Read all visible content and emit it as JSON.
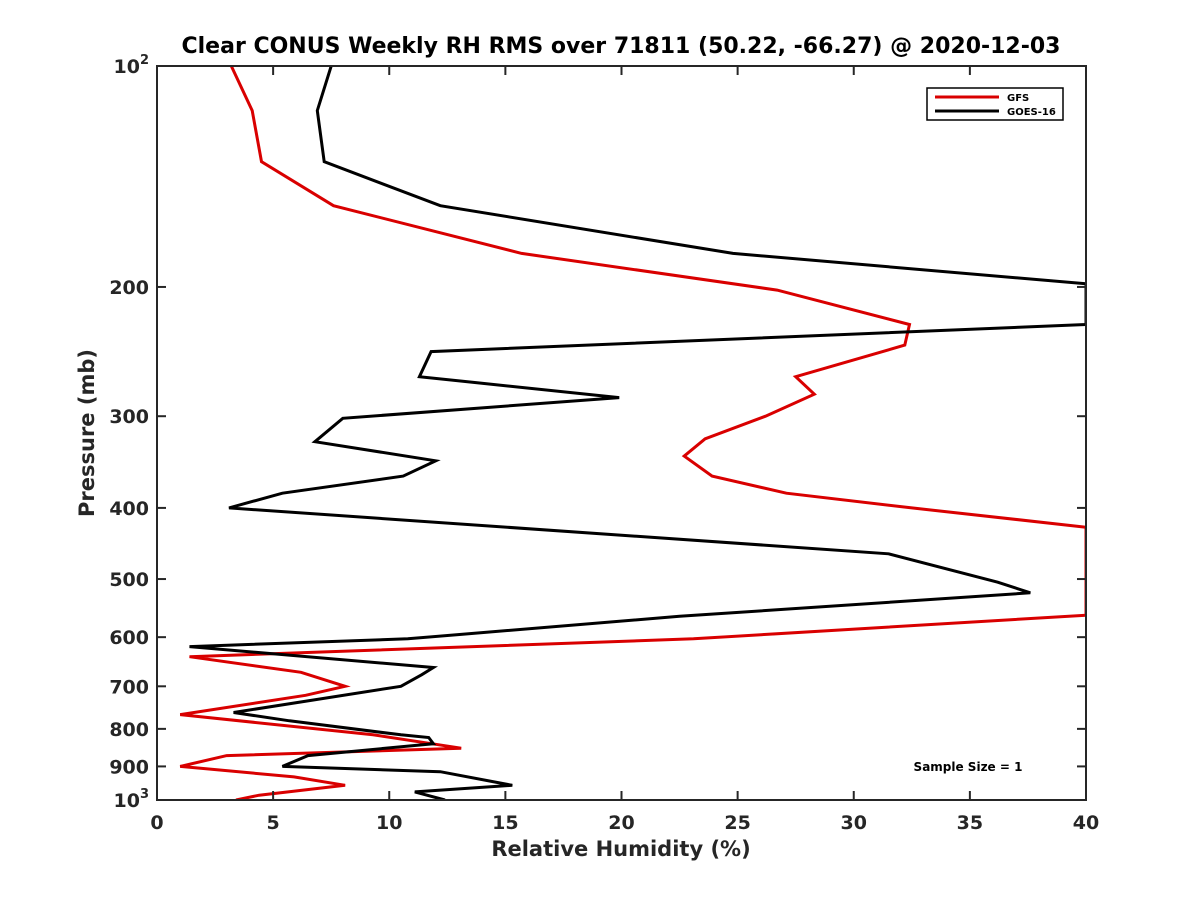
{
  "chart_data": {
    "type": "line",
    "title": "Clear CONUS Weekly RH RMS over 71811 (50.22, -66.27) @ 2020-12-03",
    "xlabel": "Relative Humidity (%)",
    "ylabel": "Pressure (mb)",
    "xlim": [
      0,
      40
    ],
    "ylim": [
      100,
      1000
    ],
    "yscale": "log",
    "y_reversed": true,
    "xticks": [
      0,
      5,
      10,
      15,
      20,
      25,
      30,
      35,
      40
    ],
    "xtick_labels": [
      "0",
      "5",
      "10",
      "15",
      "20",
      "25",
      "30",
      "35",
      "40"
    ],
    "yticks": [
      {
        "value": 100,
        "base": "10",
        "exp": "2"
      },
      {
        "value": 200,
        "label": "200"
      },
      {
        "value": 300,
        "label": "300"
      },
      {
        "value": 400,
        "label": "400"
      },
      {
        "value": 500,
        "label": "500"
      },
      {
        "value": 600,
        "label": "600"
      },
      {
        "value": 700,
        "label": "700"
      },
      {
        "value": 800,
        "label": "800"
      },
      {
        "value": 900,
        "label": "900"
      },
      {
        "value": 1000,
        "base": "10",
        "exp": "3"
      }
    ],
    "legend_position": "top-right",
    "annotation": "Sample Size = 1",
    "series": [
      {
        "name": "GFS",
        "color": "#d90000",
        "points": [
          [
            3.2,
            100
          ],
          [
            4.1,
            115
          ],
          [
            4.5,
            135
          ],
          [
            7.6,
            155
          ],
          [
            15.7,
            180
          ],
          [
            26.7,
            202
          ],
          [
            32.4,
            225
          ],
          [
            32.2,
            240
          ],
          [
            27.5,
            265
          ],
          [
            28.3,
            280
          ],
          [
            26.2,
            300
          ],
          [
            23.6,
            322
          ],
          [
            22.7,
            340
          ],
          [
            23.9,
            362
          ],
          [
            27.1,
            382
          ],
          [
            32.5,
            400
          ],
          [
            40,
            425
          ],
          [
            40,
            560
          ],
          [
            23.1,
            603
          ],
          [
            1.4,
            638
          ],
          [
            6.2,
            670
          ],
          [
            8.1,
            700
          ],
          [
            6.4,
            720
          ],
          [
            1.0,
            765
          ],
          [
            9.3,
            815
          ],
          [
            13.1,
            850
          ],
          [
            3.0,
            870
          ],
          [
            1.0,
            900
          ],
          [
            5.9,
            930
          ],
          [
            8.1,
            955
          ],
          [
            4.4,
            985
          ],
          [
            3.4,
            1000
          ]
        ]
      },
      {
        "name": "GOES-16",
        "color": "#000000",
        "points": [
          [
            7.5,
            100
          ],
          [
            6.9,
            115
          ],
          [
            7.2,
            135
          ],
          [
            12.2,
            155
          ],
          [
            24.8,
            180
          ],
          [
            40,
            198
          ],
          [
            40,
            225
          ],
          [
            11.8,
            245
          ],
          [
            11.3,
            265
          ],
          [
            19.9,
            283
          ],
          [
            8.0,
            302
          ],
          [
            6.8,
            325
          ],
          [
            12.0,
            345
          ],
          [
            10.6,
            362
          ],
          [
            5.4,
            382
          ],
          [
            3.1,
            400
          ],
          [
            31.5,
            462
          ],
          [
            36.2,
            505
          ],
          [
            37.6,
            522
          ],
          [
            22.5,
            562
          ],
          [
            10.8,
            603
          ],
          [
            1.4,
            618
          ],
          [
            11.9,
            660
          ],
          [
            11.4,
            675
          ],
          [
            10.5,
            700
          ],
          [
            3.3,
            760
          ],
          [
            5.7,
            780
          ],
          [
            10.5,
            815
          ],
          [
            11.7,
            822
          ],
          [
            11.9,
            838
          ],
          [
            6.5,
            870
          ],
          [
            5.4,
            900
          ],
          [
            12.2,
            915
          ],
          [
            15.3,
            955
          ],
          [
            11.1,
            975
          ],
          [
            12.4,
            1000
          ]
        ]
      }
    ]
  }
}
